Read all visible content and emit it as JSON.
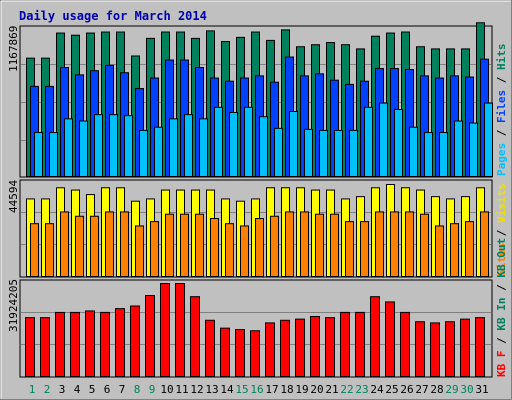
{
  "chart_data": [
    {
      "type": "bar",
      "title": "Daily usage for March 2014",
      "panel": "pages-files-hits",
      "y_max_label": "1167869",
      "y_max": 1167869,
      "categories": [
        "1",
        "2",
        "3",
        "4",
        "5",
        "6",
        "7",
        "8",
        "9",
        "10",
        "11",
        "12",
        "13",
        "14",
        "15",
        "16",
        "17",
        "18",
        "19",
        "20",
        "21",
        "22",
        "23",
        "24",
        "25",
        "26",
        "27",
        "28",
        "29",
        "30",
        "31"
      ],
      "weekend_days": [
        "1",
        "2",
        "8",
        "9",
        "15",
        "16",
        "22",
        "23",
        "29",
        "30"
      ],
      "legend": [
        {
          "label": "Hits",
          "color": "#00805c"
        },
        {
          "label": "Files",
          "color": "#0040ff"
        },
        {
          "label": "Pages",
          "color": "#00c0ff"
        }
      ],
      "series": [
        {
          "name": "Hits",
          "color": "#00805c",
          "values": [
            934000,
            934000,
            1132000,
            1115000,
            1132000,
            1140000,
            1140000,
            951000,
            1090000,
            1140000,
            1140000,
            1090000,
            1149000,
            1065000,
            1098000,
            1140000,
            1074000,
            1157000,
            1024000,
            1040000,
            1057000,
            1040000,
            1007000,
            1107000,
            1132000,
            1140000,
            1024000,
            1007000,
            1007000,
            1007000,
            1213000
          ]
        },
        {
          "name": "Files",
          "color": "#0040ff",
          "values": [
            711000,
            711000,
            860000,
            802000,
            835000,
            877000,
            819000,
            694000,
            777000,
            919000,
            919000,
            860000,
            777000,
            752000,
            777000,
            794000,
            744000,
            943000,
            794000,
            810000,
            760000,
            727000,
            752000,
            852000,
            852000,
            844000,
            794000,
            777000,
            794000,
            785000,
            926000
          ]
        },
        {
          "name": "Pages",
          "color": "#00c0ff",
          "values": [
            347000,
            347000,
            455000,
            438000,
            488000,
            488000,
            480000,
            364000,
            389000,
            455000,
            488000,
            455000,
            546000,
            505000,
            546000,
            472000,
            380000,
            513000,
            372000,
            364000,
            364000,
            364000,
            546000,
            579000,
            529000,
            389000,
            347000,
            347000,
            438000,
            422000,
            579000
          ]
        }
      ]
    },
    {
      "type": "bar",
      "panel": "visits-sites",
      "y_max_label": "44594",
      "y_max": 44594,
      "categories": [
        "1",
        "2",
        "3",
        "4",
        "5",
        "6",
        "7",
        "8",
        "9",
        "10",
        "11",
        "12",
        "13",
        "14",
        "15",
        "16",
        "17",
        "18",
        "19",
        "20",
        "21",
        "22",
        "23",
        "24",
        "25",
        "26",
        "27",
        "28",
        "29",
        "30",
        "31"
      ],
      "legend": [
        {
          "label": "Visits",
          "color": "#f0e000"
        },
        {
          "label": "Sites",
          "color": "#ff8000"
        }
      ],
      "series": [
        {
          "name": "Visits",
          "color": "#ffff00",
          "values": [
            37600,
            37600,
            43000,
            41900,
            39700,
            43000,
            43000,
            36500,
            37600,
            41900,
            41900,
            41900,
            41900,
            37600,
            36500,
            37600,
            43000,
            43000,
            43000,
            41900,
            41900,
            37600,
            38700,
            43000,
            44594,
            43000,
            41900,
            38700,
            37600,
            38700,
            43000
          ]
        },
        {
          "name": "Sites",
          "color": "#ff8000",
          "values": [
            25600,
            25600,
            31300,
            29200,
            29200,
            31300,
            31300,
            24500,
            26600,
            30200,
            30200,
            30200,
            28100,
            25600,
            24500,
            28100,
            29200,
            31300,
            31300,
            30200,
            30200,
            26600,
            26600,
            31300,
            31300,
            31300,
            30200,
            24500,
            25600,
            26600,
            31300
          ]
        }
      ]
    },
    {
      "type": "bar",
      "panel": "kbytes",
      "y_max_label": "31924205",
      "y_max": 31924205,
      "categories": [
        "1",
        "2",
        "3",
        "4",
        "5",
        "6",
        "7",
        "8",
        "9",
        "10",
        "11",
        "12",
        "13",
        "14",
        "15",
        "16",
        "17",
        "18",
        "19",
        "20",
        "21",
        "22",
        "23",
        "24",
        "25",
        "26",
        "27",
        "28",
        "29",
        "30",
        "31"
      ],
      "legend": [
        {
          "label": "KB F",
          "color": "#ff0000"
        },
        {
          "label": "KB In",
          "color": "#00805c"
        },
        {
          "label": "KB Out",
          "color": "#00805c"
        }
      ],
      "series": [
        {
          "name": "KB F",
          "color": "#ff0000",
          "values": [
            20200000,
            20200000,
            22000000,
            22000000,
            22500000,
            22000000,
            23300000,
            24200000,
            27800000,
            31924205,
            31924205,
            27400000,
            19300000,
            16600000,
            16100000,
            15700000,
            18400000,
            19300000,
            19700000,
            20600000,
            20200000,
            22000000,
            22000000,
            27400000,
            25600000,
            22000000,
            18800000,
            18400000,
            18800000,
            19700000,
            20200000
          ]
        }
      ]
    }
  ]
}
